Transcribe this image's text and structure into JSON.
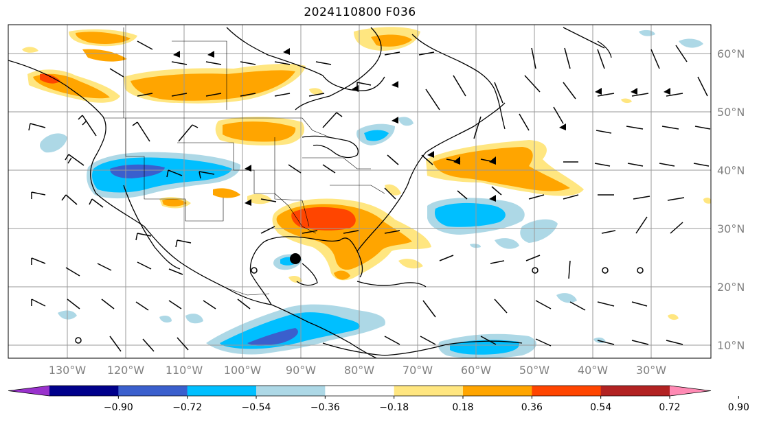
{
  "title": "2024110800 F036",
  "longitude_labels": [
    "130°W",
    "120°W",
    "110°W",
    "100°W",
    "90°W",
    "80°W",
    "70°W",
    "60°W",
    "50°W",
    "40°W",
    "30°W"
  ],
  "latitude_labels": [
    "60°N",
    "50°N",
    "40°N",
    "30°N",
    "20°N",
    "10°N"
  ],
  "colorbar": {
    "ticks": [
      "−0.90",
      "−0.72",
      "−0.54",
      "−0.36",
      "−0.18",
      "0.18",
      "0.36",
      "0.54",
      "0.72",
      "0.90"
    ],
    "colors": [
      "#9932cc",
      "#00008b",
      "#3a5fcd",
      "#00bfff",
      "#add8e6",
      "#ffffff",
      "#ffe680",
      "#ffa500",
      "#ff4500",
      "#b22222",
      "#ff8ab4"
    ]
  },
  "marker": {
    "label": "storm-center",
    "lon": -90.0,
    "lat": 25.0
  }
}
